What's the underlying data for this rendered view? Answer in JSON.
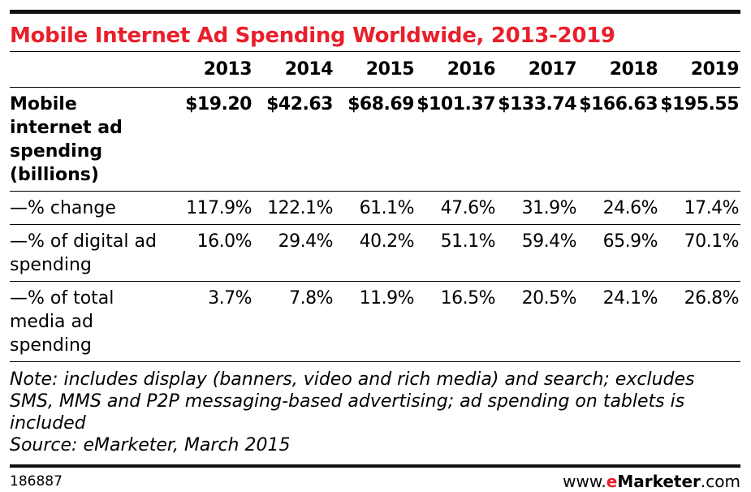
{
  "title": "Mobile Internet Ad Spending Worldwide, 2013-2019",
  "chart_data": {
    "type": "table",
    "title": "Mobile Internet Ad Spending Worldwide, 2013-2019",
    "columns": [
      "2013",
      "2014",
      "2015",
      "2016",
      "2017",
      "2018",
      "2019"
    ],
    "rows": [
      {
        "label": "Mobile internet ad spending (billions)",
        "values": [
          "$19.20",
          "$42.63",
          "$68.69",
          "$101.37",
          "$133.74",
          "$166.63",
          "$195.55"
        ]
      },
      {
        "label": "—% change",
        "values": [
          "117.9%",
          "122.1%",
          "61.1%",
          "47.6%",
          "31.9%",
          "24.6%",
          "17.4%"
        ]
      },
      {
        "label": "—% of digital ad spending",
        "values": [
          "16.0%",
          "29.4%",
          "40.2%",
          "51.1%",
          "59.4%",
          "65.9%",
          "70.1%"
        ]
      },
      {
        "label": "—% of total media ad spending",
        "values": [
          "3.7%",
          "7.8%",
          "11.9%",
          "16.5%",
          "20.5%",
          "24.1%",
          "26.8%"
        ]
      }
    ]
  },
  "notes": {
    "note": "Note: includes display (banners, video and rich media) and search; excludes SMS, MMS and P2P messaging-based advertising; ad spending on tablets is included",
    "source": "Source: eMarketer, March 2015"
  },
  "footer": {
    "chart_id": "186887",
    "brand_prefix": "www.",
    "brand_e": "e",
    "brand_mid": "Marketer",
    "brand_suffix": ".com"
  },
  "colors": {
    "title": "#e8202b",
    "rules": "#000000",
    "text": "#000000"
  }
}
